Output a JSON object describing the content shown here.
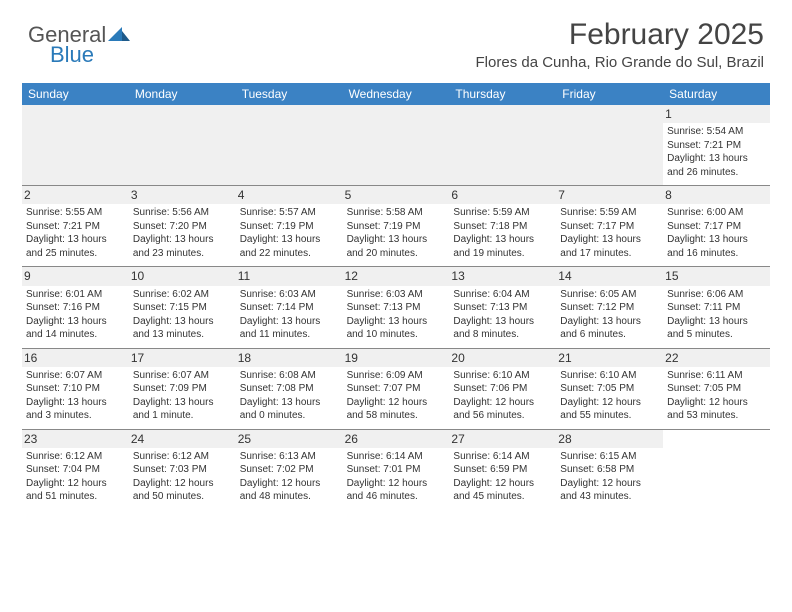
{
  "brand": {
    "name_gray": "General",
    "name_blue": "Blue"
  },
  "title": "February 2025",
  "location": "Flores da Cunha, Rio Grande do Sul, Brazil",
  "colors": {
    "header_bg": "#3b82c4",
    "header_text": "#ffffff",
    "shade_bg": "#f0f0f0",
    "border": "#888888",
    "text": "#333333",
    "logo_gray": "#555555",
    "logo_blue": "#2a7ab9"
  },
  "day_names": [
    "Sunday",
    "Monday",
    "Tuesday",
    "Wednesday",
    "Thursday",
    "Friday",
    "Saturday"
  ],
  "weeks": [
    [
      null,
      null,
      null,
      null,
      null,
      null,
      {
        "n": "1",
        "sunrise": "Sunrise: 5:54 AM",
        "sunset": "Sunset: 7:21 PM",
        "day1": "Daylight: 13 hours",
        "day2": "and 26 minutes."
      }
    ],
    [
      {
        "n": "2",
        "sunrise": "Sunrise: 5:55 AM",
        "sunset": "Sunset: 7:21 PM",
        "day1": "Daylight: 13 hours",
        "day2": "and 25 minutes."
      },
      {
        "n": "3",
        "sunrise": "Sunrise: 5:56 AM",
        "sunset": "Sunset: 7:20 PM",
        "day1": "Daylight: 13 hours",
        "day2": "and 23 minutes."
      },
      {
        "n": "4",
        "sunrise": "Sunrise: 5:57 AM",
        "sunset": "Sunset: 7:19 PM",
        "day1": "Daylight: 13 hours",
        "day2": "and 22 minutes."
      },
      {
        "n": "5",
        "sunrise": "Sunrise: 5:58 AM",
        "sunset": "Sunset: 7:19 PM",
        "day1": "Daylight: 13 hours",
        "day2": "and 20 minutes."
      },
      {
        "n": "6",
        "sunrise": "Sunrise: 5:59 AM",
        "sunset": "Sunset: 7:18 PM",
        "day1": "Daylight: 13 hours",
        "day2": "and 19 minutes."
      },
      {
        "n": "7",
        "sunrise": "Sunrise: 5:59 AM",
        "sunset": "Sunset: 7:17 PM",
        "day1": "Daylight: 13 hours",
        "day2": "and 17 minutes."
      },
      {
        "n": "8",
        "sunrise": "Sunrise: 6:00 AM",
        "sunset": "Sunset: 7:17 PM",
        "day1": "Daylight: 13 hours",
        "day2": "and 16 minutes."
      }
    ],
    [
      {
        "n": "9",
        "sunrise": "Sunrise: 6:01 AM",
        "sunset": "Sunset: 7:16 PM",
        "day1": "Daylight: 13 hours",
        "day2": "and 14 minutes."
      },
      {
        "n": "10",
        "sunrise": "Sunrise: 6:02 AM",
        "sunset": "Sunset: 7:15 PM",
        "day1": "Daylight: 13 hours",
        "day2": "and 13 minutes."
      },
      {
        "n": "11",
        "sunrise": "Sunrise: 6:03 AM",
        "sunset": "Sunset: 7:14 PM",
        "day1": "Daylight: 13 hours",
        "day2": "and 11 minutes."
      },
      {
        "n": "12",
        "sunrise": "Sunrise: 6:03 AM",
        "sunset": "Sunset: 7:13 PM",
        "day1": "Daylight: 13 hours",
        "day2": "and 10 minutes."
      },
      {
        "n": "13",
        "sunrise": "Sunrise: 6:04 AM",
        "sunset": "Sunset: 7:13 PM",
        "day1": "Daylight: 13 hours",
        "day2": "and 8 minutes."
      },
      {
        "n": "14",
        "sunrise": "Sunrise: 6:05 AM",
        "sunset": "Sunset: 7:12 PM",
        "day1": "Daylight: 13 hours",
        "day2": "and 6 minutes."
      },
      {
        "n": "15",
        "sunrise": "Sunrise: 6:06 AM",
        "sunset": "Sunset: 7:11 PM",
        "day1": "Daylight: 13 hours",
        "day2": "and 5 minutes."
      }
    ],
    [
      {
        "n": "16",
        "sunrise": "Sunrise: 6:07 AM",
        "sunset": "Sunset: 7:10 PM",
        "day1": "Daylight: 13 hours",
        "day2": "and 3 minutes."
      },
      {
        "n": "17",
        "sunrise": "Sunrise: 6:07 AM",
        "sunset": "Sunset: 7:09 PM",
        "day1": "Daylight: 13 hours",
        "day2": "and 1 minute."
      },
      {
        "n": "18",
        "sunrise": "Sunrise: 6:08 AM",
        "sunset": "Sunset: 7:08 PM",
        "day1": "Daylight: 13 hours",
        "day2": "and 0 minutes."
      },
      {
        "n": "19",
        "sunrise": "Sunrise: 6:09 AM",
        "sunset": "Sunset: 7:07 PM",
        "day1": "Daylight: 12 hours",
        "day2": "and 58 minutes."
      },
      {
        "n": "20",
        "sunrise": "Sunrise: 6:10 AM",
        "sunset": "Sunset: 7:06 PM",
        "day1": "Daylight: 12 hours",
        "day2": "and 56 minutes."
      },
      {
        "n": "21",
        "sunrise": "Sunrise: 6:10 AM",
        "sunset": "Sunset: 7:05 PM",
        "day1": "Daylight: 12 hours",
        "day2": "and 55 minutes."
      },
      {
        "n": "22",
        "sunrise": "Sunrise: 6:11 AM",
        "sunset": "Sunset: 7:05 PM",
        "day1": "Daylight: 12 hours",
        "day2": "and 53 minutes."
      }
    ],
    [
      {
        "n": "23",
        "sunrise": "Sunrise: 6:12 AM",
        "sunset": "Sunset: 7:04 PM",
        "day1": "Daylight: 12 hours",
        "day2": "and 51 minutes."
      },
      {
        "n": "24",
        "sunrise": "Sunrise: 6:12 AM",
        "sunset": "Sunset: 7:03 PM",
        "day1": "Daylight: 12 hours",
        "day2": "and 50 minutes."
      },
      {
        "n": "25",
        "sunrise": "Sunrise: 6:13 AM",
        "sunset": "Sunset: 7:02 PM",
        "day1": "Daylight: 12 hours",
        "day2": "and 48 minutes."
      },
      {
        "n": "26",
        "sunrise": "Sunrise: 6:14 AM",
        "sunset": "Sunset: 7:01 PM",
        "day1": "Daylight: 12 hours",
        "day2": "and 46 minutes."
      },
      {
        "n": "27",
        "sunrise": "Sunrise: 6:14 AM",
        "sunset": "Sunset: 6:59 PM",
        "day1": "Daylight: 12 hours",
        "day2": "and 45 minutes."
      },
      {
        "n": "28",
        "sunrise": "Sunrise: 6:15 AM",
        "sunset": "Sunset: 6:58 PM",
        "day1": "Daylight: 12 hours",
        "day2": "and 43 minutes."
      },
      null
    ]
  ]
}
